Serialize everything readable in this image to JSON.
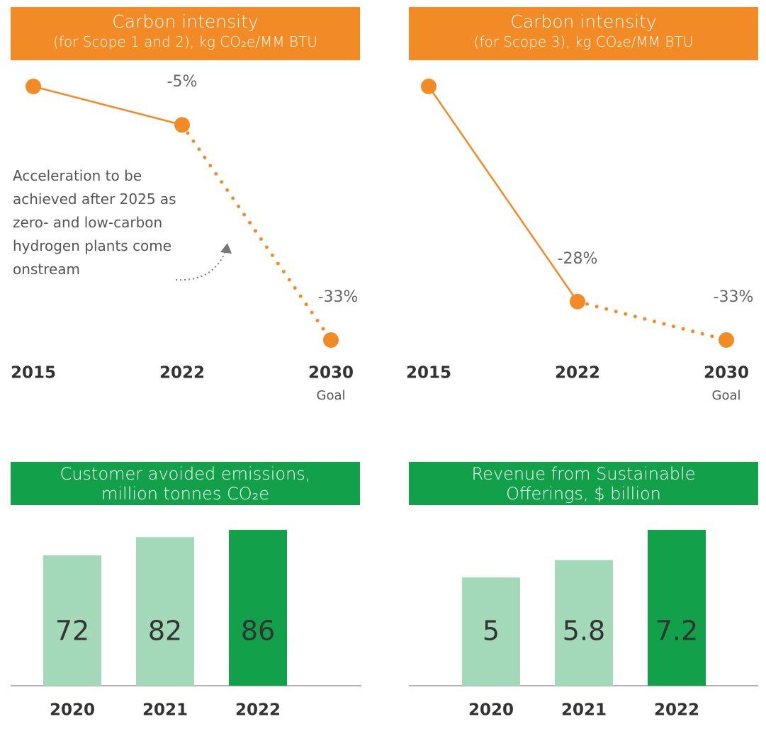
{
  "chart_data": [
    {
      "type": "line",
      "title": "Carbon intensity",
      "subtitle": "(for Scope 1 and 2), kg CO₂e/MM BTU",
      "categories": [
        "2015",
        "2022",
        "2030"
      ],
      "category_notes": [
        null,
        null,
        "Goal"
      ],
      "values": [
        0,
        -5,
        -33
      ],
      "value_labels": [
        null,
        "-5%",
        "-33%"
      ],
      "line_styles": [
        "solid",
        "dotted"
      ],
      "color": "#f28a25",
      "annotation": "Acceleration to be achieved after 2025 as zero- and low-carbon hydrogen plants come onstream"
    },
    {
      "type": "line",
      "title": "Carbon intensity",
      "subtitle": "(for Scope 3), kg CO₂e/MM BTU",
      "categories": [
        "2015",
        "2022",
        "2030"
      ],
      "category_notes": [
        null,
        null,
        "Goal"
      ],
      "values": [
        0,
        -28,
        -33
      ],
      "value_labels": [
        null,
        "-28%",
        "-33%"
      ],
      "line_styles": [
        "solid",
        "dotted"
      ],
      "color": "#f28a25"
    },
    {
      "type": "bar",
      "title": "Customer avoided emissions,",
      "subtitle": "million tonnes CO₂e",
      "categories": [
        "2020",
        "2021",
        "2022"
      ],
      "values": [
        72,
        82,
        86
      ],
      "colors": [
        "#a3d9b8",
        "#a3d9b8",
        "#13a04a"
      ]
    },
    {
      "type": "bar",
      "title": "Revenue from Sustainable",
      "subtitle": "Offerings, $ billion",
      "categories": [
        "2020",
        "2021",
        "2022"
      ],
      "values": [
        5,
        5.8,
        7.2
      ],
      "colors": [
        "#a3d9b8",
        "#a3d9b8",
        "#13a04a"
      ]
    }
  ]
}
